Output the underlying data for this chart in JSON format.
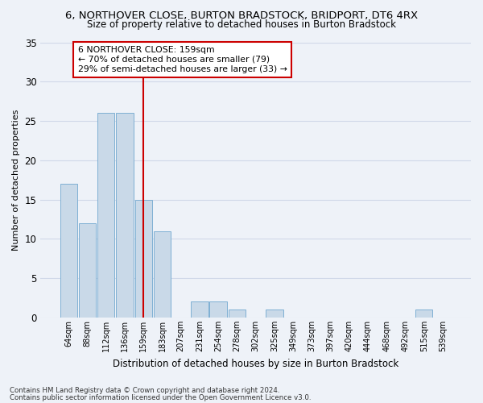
{
  "title": "6, NORTHOVER CLOSE, BURTON BRADSTOCK, BRIDPORT, DT6 4RX",
  "subtitle": "Size of property relative to detached houses in Burton Bradstock",
  "xlabel": "Distribution of detached houses by size in Burton Bradstock",
  "ylabel": "Number of detached properties",
  "footnote1": "Contains HM Land Registry data © Crown copyright and database right 2024.",
  "footnote2": "Contains public sector information licensed under the Open Government Licence v3.0.",
  "bin_labels": [
    "64sqm",
    "88sqm",
    "112sqm",
    "136sqm",
    "159sqm",
    "183sqm",
    "207sqm",
    "231sqm",
    "254sqm",
    "278sqm",
    "302sqm",
    "325sqm",
    "349sqm",
    "373sqm",
    "397sqm",
    "420sqm",
    "444sqm",
    "468sqm",
    "492sqm",
    "515sqm",
    "539sqm"
  ],
  "bar_values": [
    17,
    12,
    26,
    26,
    15,
    11,
    0,
    2,
    2,
    1,
    0,
    1,
    0,
    0,
    0,
    0,
    0,
    0,
    0,
    1,
    0
  ],
  "bar_color": "#c9d9e8",
  "bar_edge_color": "#7fb0d4",
  "grid_color": "#d0d8e8",
  "vline_x": 4,
  "vline_color": "#cc0000",
  "annotation_text": "6 NORTHOVER CLOSE: 159sqm\n← 70% of detached houses are smaller (79)\n29% of semi-detached houses are larger (33) →",
  "annotation_box_color": "#ffffff",
  "annotation_box_edge_color": "#cc0000",
  "ylim": [
    0,
    35
  ],
  "yticks": [
    0,
    5,
    10,
    15,
    20,
    25,
    30,
    35
  ],
  "bg_color": "#eef2f8"
}
